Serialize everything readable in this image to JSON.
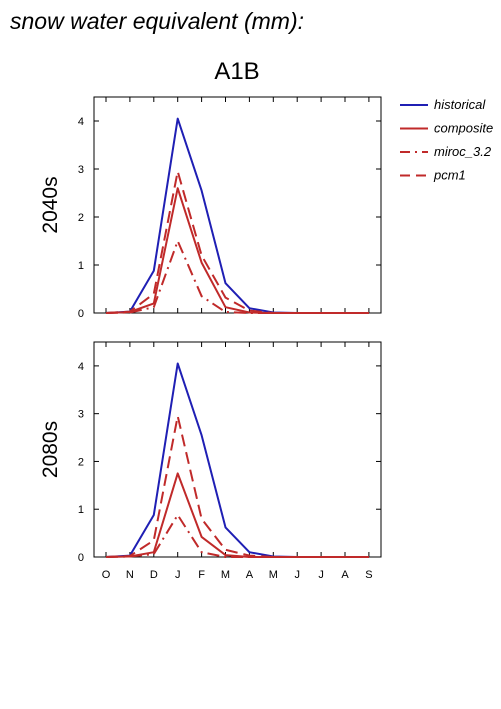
{
  "title": "snow water equivalent (mm):",
  "scenario": "A1B",
  "colors": {
    "historical": "#1f1fb4",
    "projection": "#c02a2a",
    "axis": "#000000"
  },
  "legend": {
    "placement": "right",
    "items": [
      {
        "label": "historical",
        "color": "#1f1fb4",
        "dash": "solid"
      },
      {
        "label": "composite",
        "color": "#c02a2a",
        "dash": "solid"
      },
      {
        "label": "miroc_3.2",
        "color": "#c02a2a",
        "dash": "dashdot"
      },
      {
        "label": "pcm1",
        "color": "#c02a2a",
        "dash": "dashed"
      }
    ]
  },
  "chart_data": [
    {
      "type": "line",
      "panel": "2040s",
      "ylabel": "2040s",
      "categories": [
        "O",
        "N",
        "D",
        "J",
        "F",
        "M",
        "A",
        "M",
        "J",
        "J",
        "A",
        "S"
      ],
      "yticks": [
        0,
        1,
        2,
        3,
        4
      ],
      "ylim": [
        0,
        4.5
      ],
      "series": [
        {
          "name": "historical",
          "values": [
            0.0,
            0.03,
            0.88,
            4.05,
            2.55,
            0.62,
            0.1,
            0.01,
            0.0,
            0.0,
            0.0,
            0.0
          ]
        },
        {
          "name": "composite",
          "values": [
            0.0,
            0.02,
            0.2,
            2.6,
            1.05,
            0.12,
            0.01,
            0.0,
            0.0,
            0.0,
            0.0,
            0.0
          ]
        },
        {
          "name": "miroc_3.2",
          "values": [
            0.0,
            0.01,
            0.12,
            1.5,
            0.35,
            0.02,
            0.0,
            0.0,
            0.0,
            0.0,
            0.0,
            0.0
          ]
        },
        {
          "name": "pcm1",
          "values": [
            0.0,
            0.03,
            0.4,
            2.95,
            1.2,
            0.32,
            0.05,
            0.0,
            0.0,
            0.0,
            0.0,
            0.0
          ]
        }
      ]
    },
    {
      "type": "line",
      "panel": "2080s",
      "ylabel": "2080s",
      "categories": [
        "O",
        "N",
        "D",
        "J",
        "F",
        "M",
        "A",
        "M",
        "J",
        "J",
        "A",
        "S"
      ],
      "yticks": [
        0,
        1,
        2,
        3,
        4
      ],
      "ylim": [
        0,
        4.5
      ],
      "series": [
        {
          "name": "historical",
          "values": [
            0.0,
            0.03,
            0.88,
            4.05,
            2.55,
            0.62,
            0.1,
            0.01,
            0.0,
            0.0,
            0.0,
            0.0
          ]
        },
        {
          "name": "composite",
          "values": [
            0.0,
            0.01,
            0.1,
            1.75,
            0.42,
            0.04,
            0.0,
            0.0,
            0.0,
            0.0,
            0.0,
            0.0
          ]
        },
        {
          "name": "miroc_3.2",
          "values": [
            0.0,
            0.01,
            0.06,
            0.88,
            0.1,
            0.0,
            0.0,
            0.0,
            0.0,
            0.0,
            0.0,
            0.0
          ]
        },
        {
          "name": "pcm1",
          "values": [
            0.0,
            0.02,
            0.35,
            2.95,
            0.8,
            0.15,
            0.03,
            0.0,
            0.0,
            0.0,
            0.0,
            0.0
          ]
        }
      ]
    }
  ]
}
